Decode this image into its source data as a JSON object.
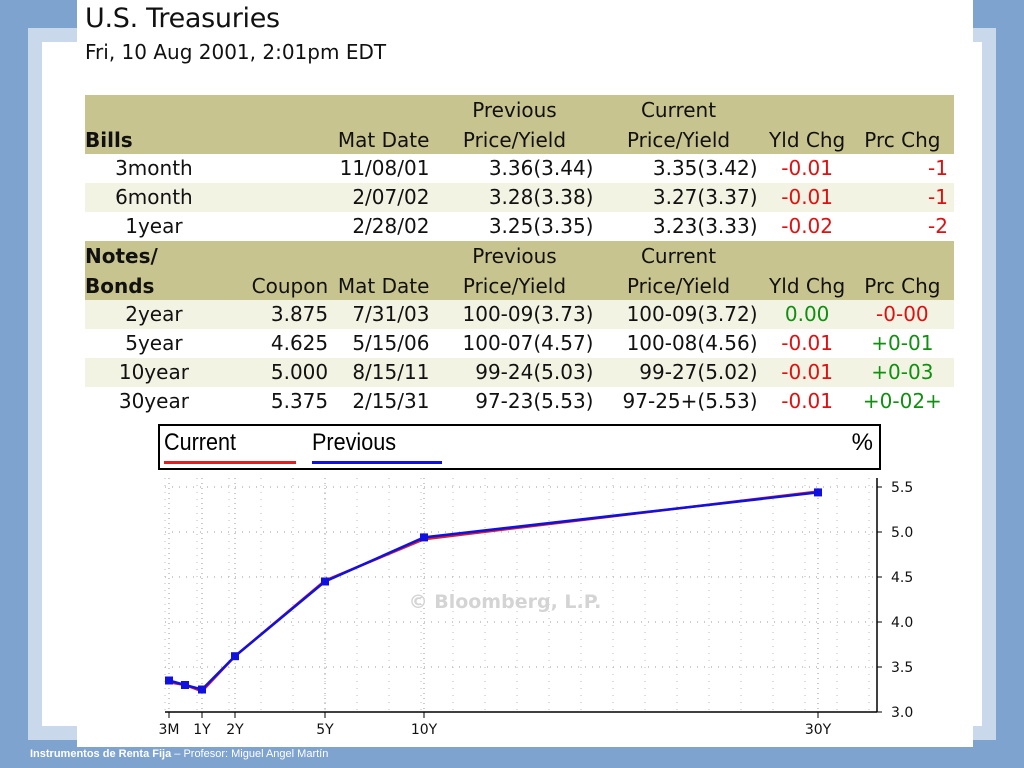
{
  "header": {
    "title": "U.S. Treasuries",
    "subtitle": "Fri, 10 Aug 2001, 2:01pm EDT"
  },
  "bills": {
    "header_top": [
      "",
      "",
      "Previous",
      "Current",
      "",
      ""
    ],
    "section_label": "Bills",
    "header_bottom": [
      "Mat Date",
      "Price/Yield",
      "Price/Yield",
      "Yld Chg",
      "Prc Chg"
    ],
    "rows": [
      {
        "term": "3month",
        "mat_date": "11/08/01",
        "previous": "3.36(3.44)",
        "current": "3.35(3.42)",
        "yld_chg": "-0.01",
        "prc_chg": "-1"
      },
      {
        "term": "6month",
        "mat_date": "2/07/02",
        "previous": "3.28(3.38)",
        "current": "3.27(3.37)",
        "yld_chg": "-0.01",
        "prc_chg": "-1"
      },
      {
        "term": "1year",
        "mat_date": "2/28/02",
        "previous": "3.25(3.35)",
        "current": "3.23(3.33)",
        "yld_chg": "-0.02",
        "prc_chg": "-2"
      }
    ]
  },
  "notes": {
    "section_label_top": "Notes/",
    "section_label_bottom": "Bonds",
    "header_top": [
      "Previous",
      "Current"
    ],
    "header_bottom": [
      "Coupon",
      "Mat Date",
      "Price/Yield",
      "Price/Yield",
      "Yld Chg",
      "Prc Chg"
    ],
    "rows": [
      {
        "term": "2year",
        "coupon": "3.875",
        "mat_date": "7/31/03",
        "previous": "100-09(3.73)",
        "current": "100-09(3.72)",
        "yld_chg": "0.00",
        "prc_chg": "-0-00"
      },
      {
        "term": "5year",
        "coupon": "4.625",
        "mat_date": "5/15/06",
        "previous": "100-07(4.57)",
        "current": "100-08(4.56)",
        "yld_chg": "-0.01",
        "prc_chg": "+0-01"
      },
      {
        "term": "10year",
        "coupon": "5.000",
        "mat_date": "8/15/11",
        "previous": "99-24(5.03)",
        "current": "99-27(5.02)",
        "yld_chg": "-0.01",
        "prc_chg": "+0-03"
      },
      {
        "term": "30year",
        "coupon": "5.375",
        "mat_date": "2/15/31",
        "previous": "97-23(5.53)",
        "current": "97-25+(5.53)",
        "yld_chg": "-0.01",
        "prc_chg": "+0-02+"
      }
    ]
  },
  "legend": {
    "current_label": "Current",
    "previous_label": "Previous",
    "unit": "%"
  },
  "colors": {
    "current": "#e02020",
    "previous": "#1010e0",
    "header_band": "#c8c48f",
    "stripe": "#f3f3e3"
  },
  "chart_data": {
    "type": "line",
    "x": [
      "3M",
      "6M",
      "1Y",
      "2Y",
      "5Y",
      "10Y",
      "30Y"
    ],
    "x_ticks": [
      "3M",
      "1Y",
      "2Y",
      "5Y",
      "10Y",
      "30Y"
    ],
    "x_years": [
      0.25,
      0.5,
      1,
      2,
      5,
      10,
      30
    ],
    "series": [
      {
        "name": "Current",
        "values": [
          3.33,
          3.3,
          3.23,
          3.62,
          4.46,
          4.92,
          5.45
        ]
      },
      {
        "name": "Previous",
        "values": [
          3.35,
          3.3,
          3.25,
          3.62,
          4.45,
          4.94,
          5.44
        ]
      }
    ],
    "y_ticks": [
      "3.0",
      "3.5",
      "4.0",
      "4.5",
      "5.0",
      "5.5"
    ],
    "ylim": [
      3.0,
      5.6
    ],
    "grid": true,
    "watermark": "© Bloomberg, L.P."
  },
  "footer": {
    "course": "Instrumentos de Renta Fija",
    "separator": " – ",
    "author": "Profesor: Miguel Angel Martín"
  }
}
